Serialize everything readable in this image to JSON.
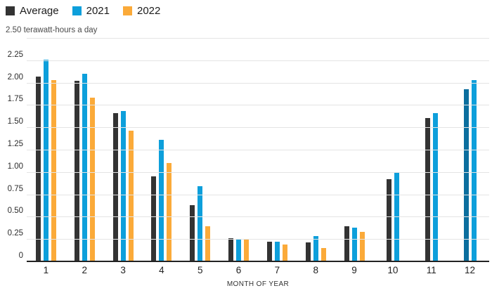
{
  "axis_top_label": "2.50 terawatt-hours a day",
  "chart_data": {
    "type": "bar",
    "title": "",
    "xlabel": "MONTH OF YEAR",
    "ylabel": "terawatt-hours a day",
    "ylim": [
      0,
      2.5
    ],
    "grid": true,
    "legend_position": "top-left",
    "ytick_labels": [
      "0",
      "0.25",
      "0.50",
      "0.75",
      "1.00",
      "1.25",
      "1.50",
      "1.75",
      "2.00",
      "2.25"
    ],
    "categories": [
      "1",
      "2",
      "3",
      "4",
      "5",
      "6",
      "7",
      "8",
      "9",
      "10",
      "11",
      "12"
    ],
    "series": [
      {
        "name": "Average",
        "color": "#333333",
        "values": [
          2.07,
          2.02,
          1.66,
          0.95,
          0.63,
          0.26,
          0.22,
          0.21,
          0.39,
          0.92,
          1.6,
          1.93
        ]
      },
      {
        "name": "2021",
        "color": "#0d9fdb",
        "values": [
          2.26,
          2.1,
          1.68,
          1.36,
          0.84,
          0.25,
          0.22,
          0.28,
          0.38,
          1.0,
          1.66,
          2.03
        ]
      },
      {
        "name": "2022",
        "color": "#fbaa39",
        "values": [
          2.03,
          1.83,
          1.46,
          1.1,
          0.39,
          0.24,
          0.19,
          0.15,
          0.33,
          null,
          null,
          null
        ]
      }
    ],
    "bar_color_overrides": [
      {
        "series": "Average",
        "category": "12",
        "color": "#0b6e9e"
      }
    ]
  }
}
